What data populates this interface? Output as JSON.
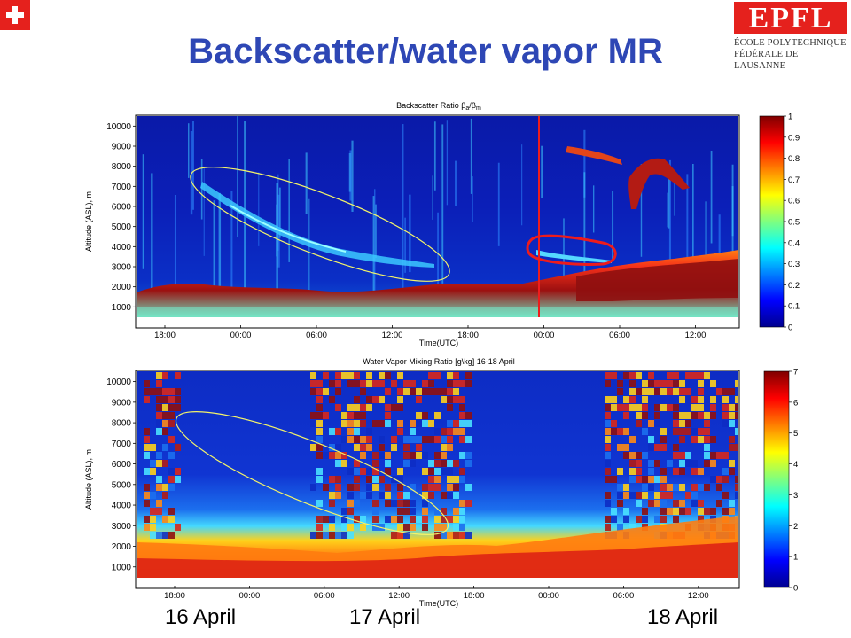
{
  "page": {
    "title": "Backscatter/water vapor MR",
    "logo": {
      "brand": "EPFL",
      "line1": "ÉCOLE POLYTECHNIQUE",
      "line2": "FÉDÉRALE DE LAUSANNE"
    },
    "dates": [
      "16 April",
      "17 April",
      "18 April"
    ]
  },
  "colors": {
    "title": "#2e47b5",
    "swiss_red": "#e5211d",
    "annotation_yellow": "#f3f36a",
    "annotation_red": "#ee1c1c"
  },
  "chart_data": [
    {
      "type": "heatmap",
      "title": "Backscatter Ratio βa/βm",
      "title_main": "Backscatter Ratio β",
      "title_sub1": "a",
      "title_sub2": "m",
      "xlabel": "Time(UTC)",
      "ylabel": "Altitude (ASL), m",
      "yticks": [
        1000,
        2000,
        3000,
        4000,
        5000,
        6000,
        7000,
        8000,
        9000,
        10000
      ],
      "ylim": [
        0,
        10500
      ],
      "xticks": [
        "18:00",
        "00:00",
        "06:00",
        "12:00",
        "18:00",
        "00:00",
        "06:00",
        "12:00"
      ],
      "colorbar": {
        "ticks": [
          "0",
          "0.1",
          "0.2",
          "0.3",
          "0.4",
          "0.5",
          "0.6",
          "0.7",
          "0.8",
          "0.9",
          "1"
        ],
        "range": [
          0,
          1
        ]
      },
      "annotations": [
        "yellow ellipse around aerosol layer 7000 m to 3000 m",
        "red vertical line at 00:00 on 18 April",
        "red ellipse around layer near 3700 m"
      ]
    },
    {
      "type": "heatmap",
      "title": "Water Vapor Mixing Ratio [g\\kg] 16-18 April",
      "xlabel": "Time(UTC)",
      "ylabel": "Altitude (ASL), m",
      "yticks": [
        1000,
        2000,
        3000,
        4000,
        5000,
        6000,
        7000,
        8000,
        9000,
        10000
      ],
      "ylim": [
        0,
        10500
      ],
      "xticks": [
        "18:00",
        "00:00",
        "06:00",
        "12:00",
        "18:00",
        "00:00",
        "06:00",
        "12:00"
      ],
      "colorbar": {
        "ticks": [
          "0",
          "1",
          "2",
          "3",
          "4",
          "5",
          "6",
          "7"
        ],
        "range": [
          0,
          7
        ]
      },
      "annotations": [
        "yellow ellipse around dry layer 8000 m to 3000 m"
      ]
    }
  ]
}
